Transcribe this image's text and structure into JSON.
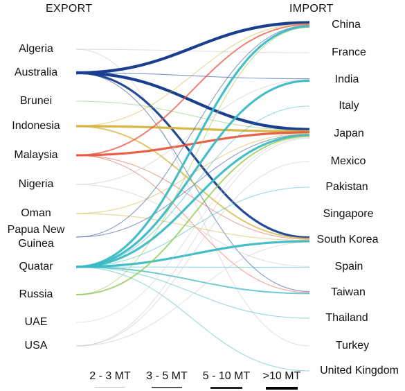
{
  "headers": {
    "export": "EXPORT",
    "import": "IMPORT"
  },
  "exporters": [
    "Algeria",
    "Australia",
    "Brunei",
    "Indonesia",
    "Malaysia",
    "Nigeria",
    "Oman",
    "Papua New Guinea",
    "Quatar",
    "Russia",
    "UAE",
    "USA"
  ],
  "importers": [
    "China",
    "France",
    "India",
    "Italy",
    "Japan",
    "Mexico",
    "Pakistan",
    "Singapore",
    "South Korea",
    "Spain",
    "Taiwan",
    "Thailand",
    "Turkey",
    "United Kingdom"
  ],
  "legend": [
    {
      "label": "2 - 3 MT",
      "color": "#bdbdbd"
    },
    {
      "label": "3 - 5 MT",
      "color": "#555555"
    },
    {
      "label": "5 - 10 MT",
      "color": "#222222"
    },
    {
      "label": ">10 MT",
      "color": "#000000"
    }
  ],
  "colors": {
    "Algeria": "#c8c8c8",
    "Australia": "#1a3f8f",
    "Brunei": "#8cc46a",
    "Indonesia": "#d4b23a",
    "Malaysia": "#e8573f",
    "Nigeria": "#c8c8c8",
    "Oman": "#d4b23a",
    "Papua New Guinea": "#2a4a9a",
    "Quatar": "#3bbac4",
    "Russia": "#8cc84c",
    "UAE": "#d0d0d0",
    "USA": "#c8c8c8"
  },
  "flows": [
    {
      "from": "Algeria",
      "to": "Turkey",
      "tier": 1
    },
    {
      "from": "Algeria",
      "to": "France",
      "tier": 1
    },
    {
      "from": "Australia",
      "to": "China",
      "tier": 4
    },
    {
      "from": "Australia",
      "to": "Japan",
      "tier": 4
    },
    {
      "from": "Australia",
      "to": "South Korea",
      "tier": 3
    },
    {
      "from": "Australia",
      "to": "India",
      "tier": 1
    },
    {
      "from": "Australia",
      "to": "Taiwan",
      "tier": 1
    },
    {
      "from": "Brunei",
      "to": "Japan",
      "tier": 1
    },
    {
      "from": "Indonesia",
      "to": "Japan",
      "tier": 3
    },
    {
      "from": "Indonesia",
      "to": "China",
      "tier": 1
    },
    {
      "from": "Indonesia",
      "to": "South Korea",
      "tier": 2
    },
    {
      "from": "Malaysia",
      "to": "China",
      "tier": 2
    },
    {
      "from": "Malaysia",
      "to": "Japan",
      "tier": 3
    },
    {
      "from": "Malaysia",
      "to": "South Korea",
      "tier": 1
    },
    {
      "from": "Malaysia",
      "to": "Taiwan",
      "tier": 1
    },
    {
      "from": "Nigeria",
      "to": "Spain",
      "tier": 1
    },
    {
      "from": "Nigeria",
      "to": "India",
      "tier": 1
    },
    {
      "from": "Oman",
      "to": "South Korea",
      "tier": 1
    },
    {
      "from": "Oman",
      "to": "Japan",
      "tier": 1
    },
    {
      "from": "Papua New Guinea",
      "to": "China",
      "tier": 1
    },
    {
      "from": "Papua New Guinea",
      "to": "Japan",
      "tier": 1
    },
    {
      "from": "Quatar",
      "to": "China",
      "tier": 3
    },
    {
      "from": "Quatar",
      "to": "India",
      "tier": 3
    },
    {
      "from": "Quatar",
      "to": "Japan",
      "tier": 3
    },
    {
      "from": "Quatar",
      "to": "South Korea",
      "tier": 3
    },
    {
      "from": "Quatar",
      "to": "Pakistan",
      "tier": 1
    },
    {
      "from": "Quatar",
      "to": "Italy",
      "tier": 1
    },
    {
      "from": "Quatar",
      "to": "Taiwan",
      "tier": 2
    },
    {
      "from": "Quatar",
      "to": "United Kingdom",
      "tier": 1
    },
    {
      "from": "Quatar",
      "to": "Thailand",
      "tier": 1
    },
    {
      "from": "Quatar",
      "to": "Spain",
      "tier": 1
    },
    {
      "from": "Russia",
      "to": "Japan",
      "tier": 2
    },
    {
      "from": "Russia",
      "to": "China",
      "tier": 1
    },
    {
      "from": "UAE",
      "to": "Japan",
      "tier": 1
    },
    {
      "from": "USA",
      "to": "Mexico",
      "tier": 1
    },
    {
      "from": "USA",
      "to": "South Korea",
      "tier": 1
    },
    {
      "from": "USA",
      "to": "Japan",
      "tier": 1
    }
  ]
}
